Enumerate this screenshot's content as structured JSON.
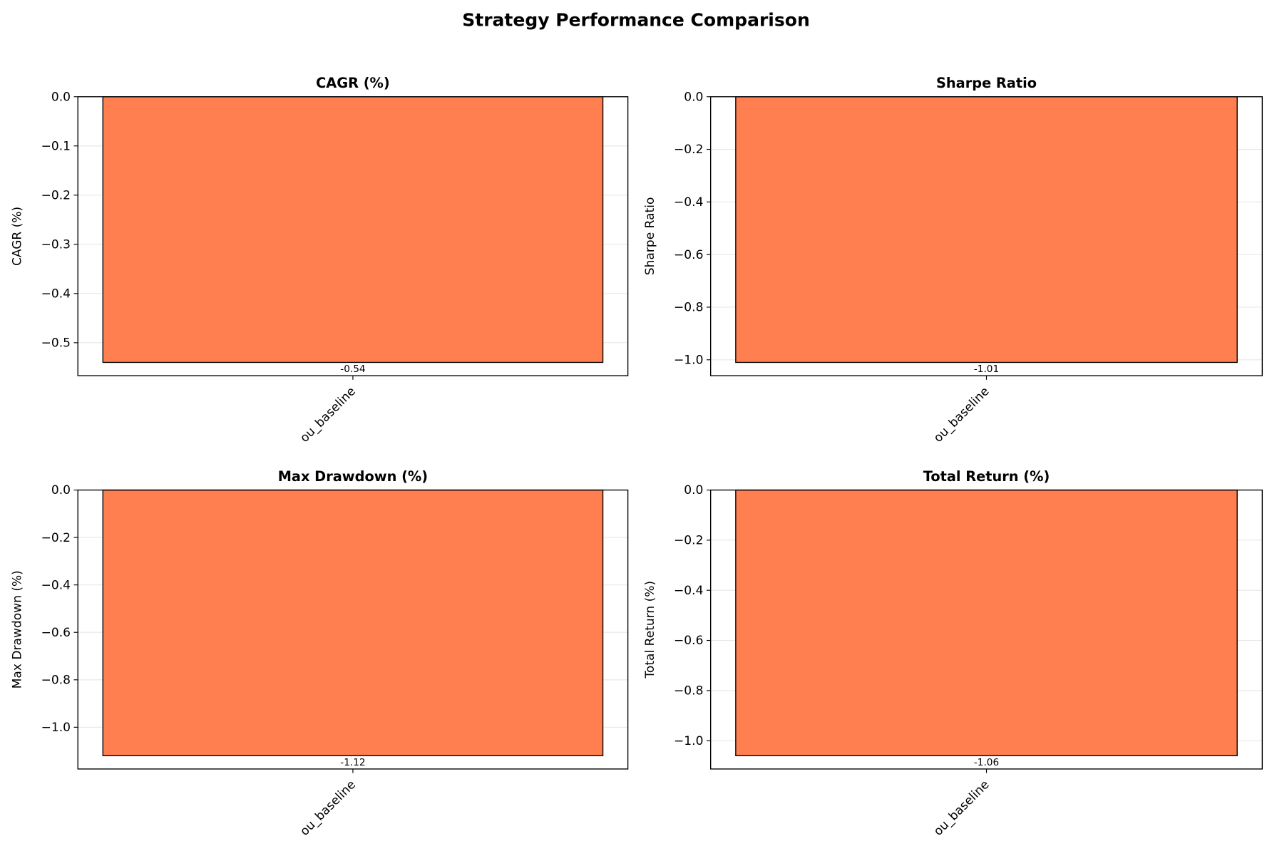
{
  "title": "Strategy Performance Comparison",
  "chart_data": [
    {
      "type": "bar",
      "title": "CAGR (%)",
      "ylabel": "CAGR (%)",
      "categories": [
        "ou_baseline"
      ],
      "values": [
        -0.54
      ],
      "color": "#ff7f50",
      "ylim": [
        -0.567,
        0
      ],
      "grid": true,
      "yticks": [
        {
          "value": 0,
          "label": "0.0"
        },
        {
          "value": -0.1,
          "label": "−0.1"
        },
        {
          "value": -0.2,
          "label": "−0.2"
        },
        {
          "value": -0.3,
          "label": "−0.3"
        },
        {
          "value": -0.4,
          "label": "−0.4"
        },
        {
          "value": -0.5,
          "label": "−0.5"
        }
      ]
    },
    {
      "type": "bar",
      "title": "Sharpe Ratio",
      "ylabel": "Sharpe Ratio",
      "categories": [
        "ou_baseline"
      ],
      "values": [
        -1.01
      ],
      "color": "#ff7f50",
      "ylim": [
        -1.0605,
        0
      ],
      "grid": true,
      "yticks": [
        {
          "value": 0,
          "label": "0.0"
        },
        {
          "value": -0.2,
          "label": "−0.2"
        },
        {
          "value": -0.4,
          "label": "−0.4"
        },
        {
          "value": -0.6,
          "label": "−0.6"
        },
        {
          "value": -0.8,
          "label": "−0.8"
        },
        {
          "value": -1.0,
          "label": "−1.0"
        }
      ]
    },
    {
      "type": "bar",
      "title": "Max Drawdown (%)",
      "ylabel": "Max Drawdown (%)",
      "categories": [
        "ou_baseline"
      ],
      "values": [
        -1.12
      ],
      "color": "#ff7f50",
      "ylim": [
        -1.176,
        0
      ],
      "grid": true,
      "yticks": [
        {
          "value": 0,
          "label": "0.0"
        },
        {
          "value": -0.2,
          "label": "−0.2"
        },
        {
          "value": -0.4,
          "label": "−0.4"
        },
        {
          "value": -0.6,
          "label": "−0.6"
        },
        {
          "value": -0.8,
          "label": "−0.8"
        },
        {
          "value": -1.0,
          "label": "−1.0"
        }
      ]
    },
    {
      "type": "bar",
      "title": "Total Return (%)",
      "ylabel": "Total Return (%)",
      "categories": [
        "ou_baseline"
      ],
      "values": [
        -1.06
      ],
      "color": "#ff7f50",
      "ylim": [
        -1.113,
        0
      ],
      "grid": true,
      "yticks": [
        {
          "value": 0,
          "label": "0.0"
        },
        {
          "value": -0.2,
          "label": "−0.2"
        },
        {
          "value": -0.4,
          "label": "−0.4"
        },
        {
          "value": -0.6,
          "label": "−0.6"
        },
        {
          "value": -0.8,
          "label": "−0.8"
        },
        {
          "value": -1.0,
          "label": "−1.0"
        }
      ]
    }
  ]
}
